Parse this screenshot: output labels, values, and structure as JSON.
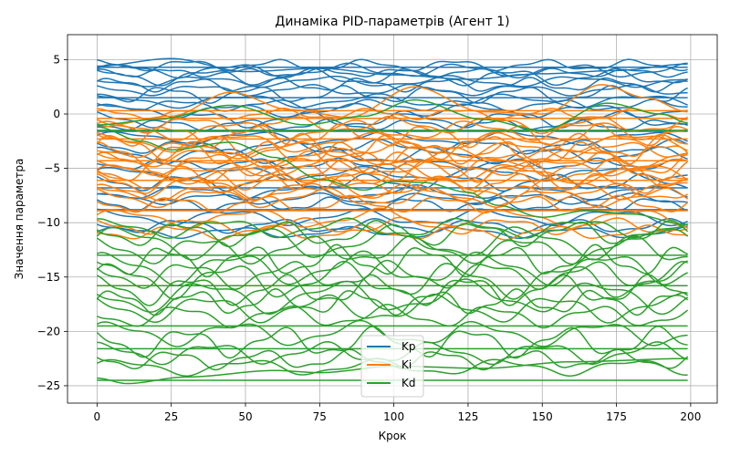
{
  "chart_data": {
    "type": "line",
    "title": "Динаміка PID-параметрів (Агент 1)",
    "xlabel": "Крок",
    "ylabel": "Значення параметра",
    "xlim": [
      -9.95,
      208.95
    ],
    "ylim": [
      -26.6,
      7.3
    ],
    "xticks": [
      0,
      25,
      50,
      75,
      100,
      125,
      150,
      175,
      200
    ],
    "yticks": [
      -25,
      -20,
      -15,
      -10,
      -5,
      0,
      5
    ],
    "grid": true,
    "legend_position": "lower center",
    "n_steps": 200,
    "series": [
      {
        "name": "Kp",
        "color": "#1f77b4",
        "lines": [
          {
            "base": 5.0,
            "wave": [
              0.7,
              24,
              0.8
            ],
            "points": [
              [
                0,
                4.4
              ],
              [
                25,
                5.1
              ],
              [
                50,
                3.9
              ],
              [
                75,
                4.2
              ],
              [
                100,
                3.6
              ],
              [
                125,
                3.2
              ],
              [
                150,
                3.7
              ],
              [
                175,
                4.0
              ],
              [
                199,
                4.6
              ]
            ]
          },
          {
            "base": 4.5,
            "wave": [
              0.4,
              30,
              1.5
            ]
          },
          {
            "base": 4.3,
            "wave": [
              0.0,
              30,
              0.0
            ]
          },
          {
            "base": 4.0,
            "wave": [
              0.5,
              38,
              0.2
            ]
          },
          {
            "base": 3.8,
            "wave": [
              0.3,
              26,
              2.1
            ]
          },
          {
            "base": 3.4,
            "wave": [
              0.6,
              34,
              0.9
            ]
          },
          {
            "base": 3.0,
            "wave": [
              0.4,
              42,
              2.6
            ]
          },
          {
            "base": 2.7,
            "wave": [
              0.5,
              28,
              0.4
            ]
          },
          {
            "base": 2.2,
            "wave": [
              0.4,
              36,
              1.8
            ]
          },
          {
            "base": 1.8,
            "wave": [
              0.6,
              30,
              3.0
            ]
          },
          {
            "base": 1.5,
            "wave": [
              0.0,
              30,
              0.0
            ]
          },
          {
            "base": 1.2,
            "wave": [
              0.5,
              45,
              1.1
            ]
          },
          {
            "base": 0.8,
            "wave": [
              0.4,
              32,
              2.4
            ]
          },
          {
            "base": 0.3,
            "wave": [
              0.5,
              40,
              0.6
            ]
          },
          {
            "base": -0.5,
            "wave": [
              0.6,
              35,
              1.6
            ]
          },
          {
            "base": -1.0,
            "wave": [
              0.4,
              28,
              2.9
            ]
          },
          {
            "base": -1.6,
            "wave": [
              0.0,
              30,
              0.0
            ]
          },
          {
            "base": -2.2,
            "wave": [
              0.5,
              44,
              0.3
            ]
          },
          {
            "base": -3.0,
            "wave": [
              0.5,
              33,
              2.2
            ]
          },
          {
            "base": -3.8,
            "wave": [
              0.6,
              37,
              1.0
            ]
          },
          {
            "base": -4.6,
            "wave": [
              0.4,
              29,
              2.7
            ]
          },
          {
            "base": -5.5,
            "wave": [
              0.5,
              41,
              0.5
            ]
          },
          {
            "base": -6.3,
            "wave": [
              0.6,
              31,
              1.9
            ]
          },
          {
            "base": -6.8,
            "wave": [
              0.0,
              30,
              0.0
            ]
          },
          {
            "base": -7.2,
            "wave": [
              0.5,
              39,
              3.1
            ]
          },
          {
            "base": -7.8,
            "wave": [
              0.4,
              35,
              0.8
            ]
          },
          {
            "base": -8.3,
            "wave": [
              0.5,
              27,
              2.0
            ]
          },
          {
            "base": -8.8,
            "wave": [
              0.0,
              30,
              0.0
            ]
          },
          {
            "base": -9.5,
            "wave": [
              0.6,
              43,
              1.3
            ]
          },
          {
            "base": -10.3,
            "wave": [
              0.5,
              33,
              2.5
            ]
          },
          {
            "base": -10.9,
            "wave": [
              0.4,
              38,
              0.1
            ]
          }
        ]
      },
      {
        "name": "Ki",
        "color": "#ff7f0e",
        "lines": [
          {
            "base": 0.3,
            "wave": [
              0.0,
              30,
              0.0
            ]
          },
          {
            "base": 0.0,
            "wave": [
              0.4,
              30,
              1.2
            ]
          },
          {
            "base": -0.4,
            "wave": [
              0.0,
              30,
              0.0
            ]
          },
          {
            "base": -0.6,
            "wave": [
              1.5,
              62,
              0.5
            ],
            "points": [
              [
                0,
                -1.2
              ],
              [
                25,
                -0.2
              ],
              [
                45,
                2.0
              ],
              [
                65,
                0.4
              ],
              [
                85,
                -0.3
              ],
              [
                107,
                2.5
              ],
              [
                130,
                0.2
              ],
              [
                150,
                0.0
              ],
              [
                170,
                2.7
              ],
              [
                185,
                1.5
              ],
              [
                199,
                0.2
              ]
            ]
          },
          {
            "base": -1.0,
            "wave": [
              0.6,
              34,
              2.0
            ]
          },
          {
            "base": -1.5,
            "wave": [
              0.7,
              40,
              0.6
            ]
          },
          {
            "base": -2.0,
            "wave": [
              0.8,
              29,
              2.6
            ]
          },
          {
            "base": -2.3,
            "wave": [
              0.0,
              30,
              0.0
            ]
          },
          {
            "base": -2.6,
            "wave": [
              0.7,
              45,
              1.4
            ]
          },
          {
            "base": -3.0,
            "wave": [
              0.9,
              31,
              0.2
            ]
          },
          {
            "base": -3.3,
            "wave": [
              0.6,
              37,
              2.9
            ]
          },
          {
            "base": -3.6,
            "wave": [
              0.8,
              27,
              1.0
            ]
          },
          {
            "base": -4.0,
            "wave": [
              0.7,
              42,
              2.3
            ]
          },
          {
            "base": -4.3,
            "wave": [
              0.0,
              30,
              0.0
            ]
          },
          {
            "base": -4.6,
            "wave": [
              0.9,
              33,
              0.7
            ]
          },
          {
            "base": -4.9,
            "wave": [
              0.6,
              39,
              1.8
            ]
          },
          {
            "base": -5.2,
            "wave": [
              0.8,
              30,
              3.0
            ]
          },
          {
            "base": -5.5,
            "wave": [
              0.7,
              44,
              0.4
            ]
          },
          {
            "base": -5.8,
            "wave": [
              0.9,
              36,
              2.1
            ]
          },
          {
            "base": -6.1,
            "wave": [
              0.0,
              30,
              0.0
            ]
          },
          {
            "base": -6.4,
            "wave": [
              0.7,
              28,
              1.3
            ]
          },
          {
            "base": -6.8,
            "wave": [
              0.8,
              41,
              2.7
            ]
          },
          {
            "base": -7.2,
            "wave": [
              0.6,
              34,
              0.9
            ]
          },
          {
            "base": -7.7,
            "wave": [
              0.7,
              38,
              1.6
            ]
          },
          {
            "base": -8.3,
            "wave": [
              0.6,
              30,
              2.4
            ]
          },
          {
            "base": -8.9,
            "wave": [
              0.0,
              30,
              0.0
            ]
          },
          {
            "base": -9.6,
            "wave": [
              0.7,
              43,
              0.3
            ]
          },
          {
            "base": -10.3,
            "wave": [
              0.6,
              35,
              1.9
            ]
          },
          {
            "base": -10.9,
            "wave": [
              0.5,
              32,
              2.8
            ]
          }
        ]
      },
      {
        "name": "Kd",
        "color": "#2ca02c",
        "lines": [
          {
            "base": -1.5,
            "wave": [
              0.0,
              30,
              0.0
            ]
          },
          {
            "base": -0.8,
            "wave": [
              1.2,
              60,
              0.8
            ],
            "points": [
              [
                0,
                -1.0
              ],
              [
                20,
                -0.5
              ],
              [
                45,
                0.8
              ],
              [
                70,
                -1.0
              ],
              [
                90,
                -0.2
              ],
              [
                107,
                1.3
              ],
              [
                130,
                -0.5
              ],
              [
                150,
                -1.5
              ],
              [
                172,
                1.0
              ],
              [
                190,
                0.0
              ],
              [
                199,
                -0.8
              ]
            ]
          },
          {
            "base": -3.0,
            "wave": [
              0.0,
              30,
              0.0
            ],
            "points": [
              [
                0,
                -1.2
              ],
              [
                15,
                -2.5
              ],
              [
                25,
                -3.3
              ],
              [
                45,
                -2.6
              ],
              [
                60,
                -4.0
              ],
              [
                75,
                -6.0
              ],
              [
                90,
                -7.0
              ],
              [
                100,
                -6.2
              ],
              [
                110,
                -6.3
              ],
              [
                125,
                -7.2
              ],
              [
                135,
                -8.4
              ],
              [
                150,
                -9.5
              ],
              [
                165,
                -8.9
              ],
              [
                180,
                -9.2
              ],
              [
                199,
                -10.2
              ]
            ]
          },
          {
            "base": -10.5,
            "wave": [
              0.7,
              40,
              1.1
            ]
          },
          {
            "base": -11.0,
            "wave": [
              0.9,
              33,
              2.4
            ]
          },
          {
            "base": -11.8,
            "wave": [
              1.2,
              45,
              0.3
            ]
          },
          {
            "base": -12.5,
            "wave": [
              1.0,
              36,
              1.7
            ]
          },
          {
            "base": -13.0,
            "wave": [
              0.0,
              30,
              0.0
            ]
          },
          {
            "base": -13.5,
            "wave": [
              1.1,
              29,
              2.9
            ]
          },
          {
            "base": -14.2,
            "wave": [
              1.2,
              42,
              0.9
            ]
          },
          {
            "base": -14.8,
            "wave": [
              1.0,
              34,
              2.2
            ]
          },
          {
            "base": -15.3,
            "wave": [
              1.3,
              38,
              0.5
            ]
          },
          {
            "base": -15.8,
            "wave": [
              0.0,
              30,
              0.0
            ]
          },
          {
            "base": -16.2,
            "wave": [
              1.1,
              31,
              1.4
            ]
          },
          {
            "base": -16.8,
            "wave": [
              1.2,
              44,
              2.6
            ]
          },
          {
            "base": -17.3,
            "wave": [
              0.9,
              27,
              0.2
            ]
          },
          {
            "base": -17.9,
            "wave": [
              1.0,
              39,
              1.9
            ]
          },
          {
            "base": -18.6,
            "wave": [
              0.8,
              35,
              2.8
            ]
          },
          {
            "base": -19.5,
            "wave": [
              0.0,
              30,
              0.0
            ]
          },
          {
            "base": -20.2,
            "wave": [
              0.9,
              41,
              0.7
            ]
          },
          {
            "base": -21.0,
            "wave": [
              1.1,
              32,
              2.0
            ]
          },
          {
            "base": -21.6,
            "wave": [
              0.0,
              30,
              0.0
            ]
          },
          {
            "base": -22.0,
            "wave": [
              0.8,
              37,
              1.2
            ]
          },
          {
            "base": -22.6,
            "wave": [
              0.7,
              30,
              2.5
            ]
          },
          {
            "base": -23.3,
            "wave": [
              0.6,
              43,
              0.4
            ]
          },
          {
            "base": -24.0,
            "wave": [
              0.0,
              30,
              0.0
            ],
            "points": [
              [
                0,
                -24.3
              ],
              [
                10,
                -24.8
              ],
              [
                30,
                -24.2
              ],
              [
                60,
                -23.6
              ],
              [
                75,
                -23.8
              ],
              [
                100,
                -23.2
              ],
              [
                130,
                -23.4
              ],
              [
                160,
                -22.8
              ],
              [
                199,
                -22.5
              ]
            ]
          },
          {
            "base": -24.5,
            "wave": [
              0.0,
              30,
              0.0
            ]
          }
        ]
      }
    ]
  }
}
